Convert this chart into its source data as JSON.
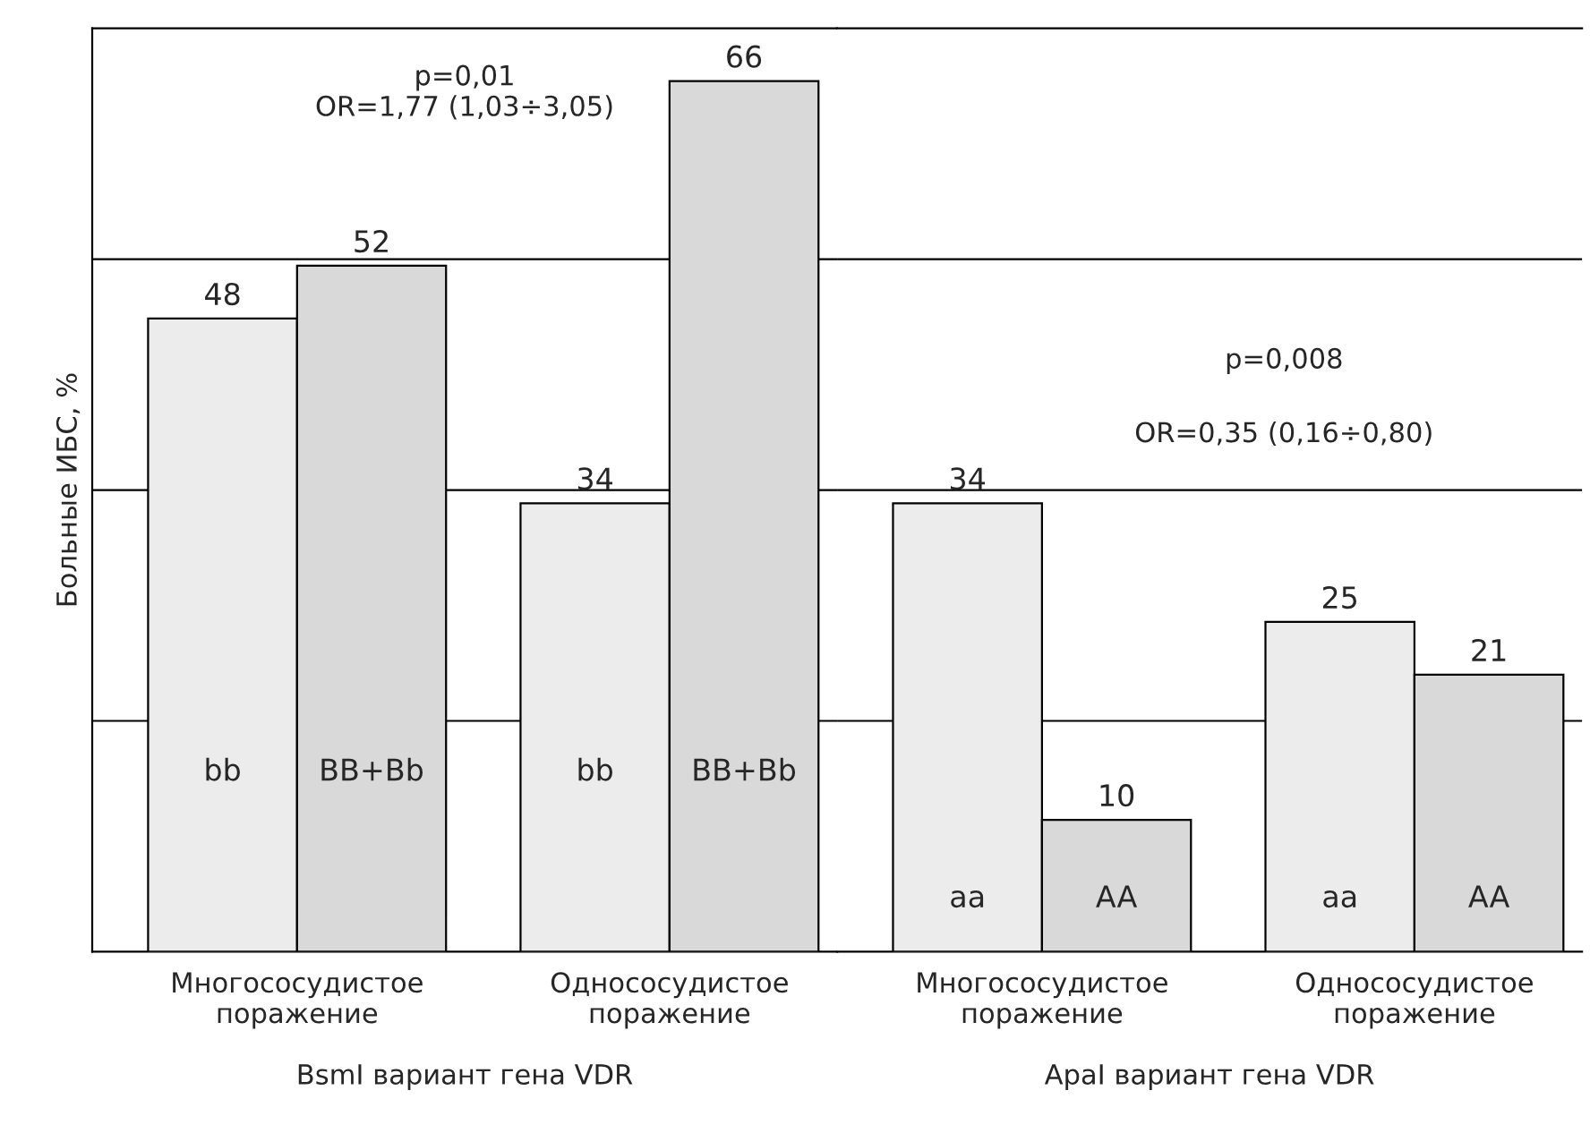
{
  "chart_data": [
    {
      "type": "bar",
      "categories": [
        "Многососудистое\nпоражение",
        "Однососудистое\nпоражение"
      ],
      "series": [
        {
          "name": "bb",
          "color": "#ececec",
          "values": [
            48,
            34
          ]
        },
        {
          "name": "BB+Bb",
          "color": "#d9d9d9",
          "values": [
            52,
            66
          ]
        }
      ],
      "ylabel": "Больные ИБС, %",
      "xlabel": "BsmI вариант гена VDR",
      "ylim": [
        0,
        70
      ],
      "yticks": [
        {
          "value": 17.5,
          "label": null
        },
        {
          "value": 35,
          "label": null
        },
        {
          "value": 52.5,
          "label": null
        }
      ],
      "grid": "y",
      "tick_labels": "x",
      "data_labels": true,
      "legend": false,
      "annotations": [
        "p=0,01\nOR=1,77 (1,03÷3,05)"
      ]
    },
    {
      "type": "bar",
      "categories": [
        "Многососудистое\nпоражение",
        "Однососудистое\nпоражение"
      ],
      "series": [
        {
          "name": "aa",
          "color": "#ececec",
          "values": [
            34,
            25
          ]
        },
        {
          "name": "AA",
          "color": "#d9d9d9",
          "values": [
            10,
            21
          ]
        }
      ],
      "xlabel": "ApaI вариант гена VDR",
      "ylim": [
        0,
        70
      ],
      "yticks": [
        {
          "value": 17.5,
          "label": null
        },
        {
          "value": 35,
          "label": null
        },
        {
          "value": 52.5,
          "label": null
        }
      ],
      "grid": "y",
      "tick_labels": "x",
      "data_labels": true,
      "legend": false,
      "annotations": [
        "p=0,008",
        "OR=0,35 (0,16÷0,80)"
      ]
    }
  ]
}
